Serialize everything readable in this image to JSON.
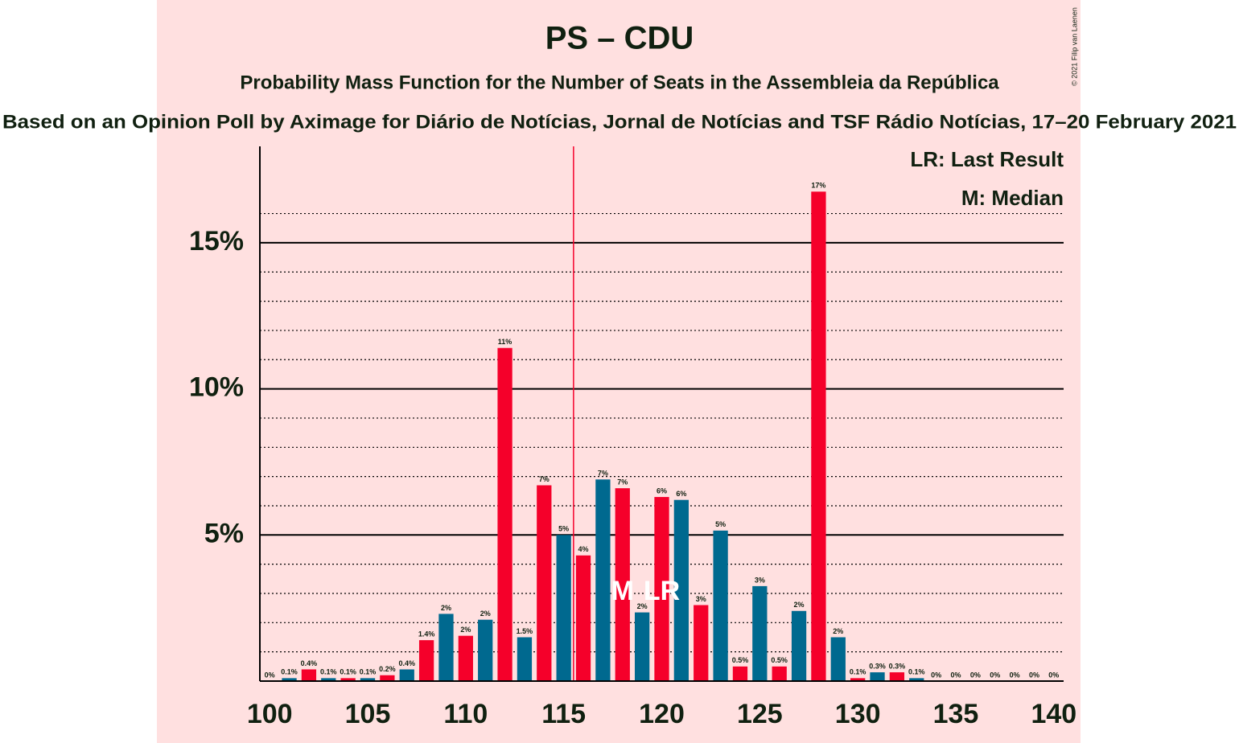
{
  "chart_data": {
    "type": "bar",
    "title": "PS – CDU",
    "subtitle": "Probability Mass Function for the Number of Seats in the Assembleia da República",
    "source": "Based on an Opinion Poll by Aximage for Diário de Notícias, Jornal de Notícias and TSF Rádio Notícias, 17–20 February 2021",
    "copyright": "© 2021 Filip van Laenen",
    "x": [
      100,
      101,
      102,
      103,
      104,
      105,
      106,
      107,
      108,
      109,
      110,
      111,
      112,
      113,
      114,
      115,
      116,
      117,
      118,
      119,
      120,
      121,
      122,
      123,
      124,
      125,
      126,
      127,
      128,
      129,
      130,
      131,
      132,
      133,
      134,
      135,
      136,
      137,
      138,
      139,
      140
    ],
    "values": [
      0,
      0.1,
      0.4,
      0.1,
      0.1,
      0.1,
      0.2,
      0.4,
      1.4,
      2.3,
      1.55,
      2.1,
      11.4,
      1.5,
      6.7,
      5.0,
      4.3,
      6.9,
      6.6,
      2.35,
      6.3,
      6.2,
      2.6,
      5.15,
      0.5,
      3.25,
      0.5,
      2.4,
      16.75,
      1.5,
      0.1,
      0.3,
      0.3,
      0.1,
      0,
      0,
      0,
      0,
      0,
      0,
      0
    ],
    "value_labels": [
      "0%",
      "0.1%",
      "0.4%",
      "0.1%",
      "0.1%",
      "0.1%",
      "0.2%",
      "0.4%",
      "1.4%",
      "2%",
      "2%",
      "2%",
      "11%",
      "1.5%",
      "7%",
      "5%",
      "4%",
      "7%",
      "7%",
      "2%",
      "6%",
      "6%",
      "3%",
      "5%",
      "0.5%",
      "3%",
      "0.5%",
      "2%",
      "17%",
      "2%",
      "0.1%",
      "0.3%",
      "0.3%",
      "0.1%",
      "0%",
      "0%",
      "0%",
      "0%",
      "0%",
      "0%",
      "0%"
    ],
    "colors": [
      "#f5002a",
      "#00698f"
    ],
    "xlim": [
      99.5,
      140.5
    ],
    "xticks": [
      100,
      105,
      110,
      115,
      120,
      125,
      130,
      135,
      140
    ],
    "ylim": [
      0,
      18.3
    ],
    "yticks": [
      {
        "value": 5,
        "label": "5%"
      },
      {
        "value": 10,
        "label": "10%"
      },
      {
        "value": 15,
        "label": "15%"
      }
    ],
    "minor_yticks": [
      1,
      2,
      3,
      4,
      6,
      7,
      8,
      9,
      11,
      12,
      13,
      14,
      16
    ],
    "majority_line": 115.5,
    "markers": [
      {
        "x": 118,
        "label": "M"
      },
      {
        "x": 120,
        "label": "LR"
      }
    ],
    "legend": [
      "LR: Last Result",
      "M: Median"
    ],
    "grid": true
  }
}
